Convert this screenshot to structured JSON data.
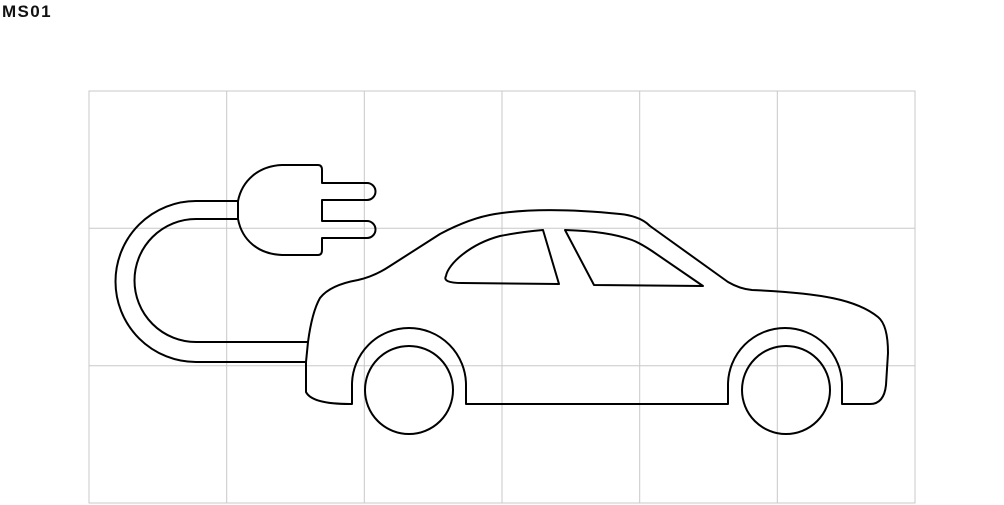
{
  "label": "MS01",
  "icon": "electric-car-charging-icon",
  "grid": {
    "columns": 6,
    "rows": 3,
    "line_color": "#c8c8c8"
  },
  "stroke_color": "#000000",
  "background_color": "#ffffff"
}
